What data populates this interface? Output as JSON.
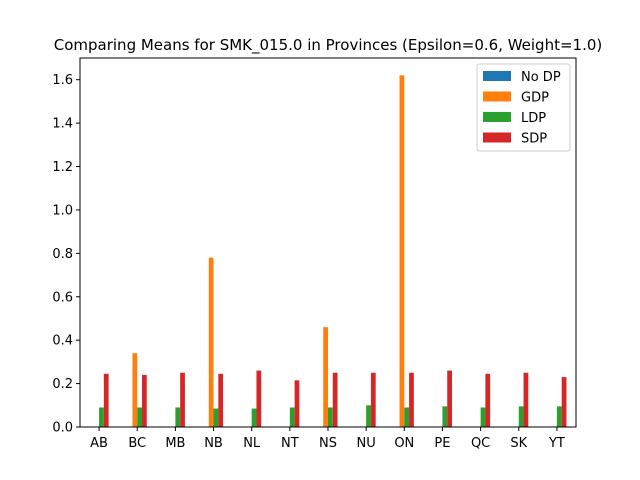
{
  "chart_data": {
    "type": "bar",
    "title": "Comparing Means for SMK_015.0 in Provinces (Epsilon=0.6, Weight=1.0)",
    "xlabel": "",
    "ylabel": "",
    "categories": [
      "AB",
      "BC",
      "MB",
      "NB",
      "NL",
      "NT",
      "NS",
      "NU",
      "ON",
      "PE",
      "QC",
      "SK",
      "YT"
    ],
    "ylim": [
      0,
      1.7
    ],
    "yticks": [
      0.0,
      0.2,
      0.4,
      0.6,
      0.8,
      1.0,
      1.2,
      1.4,
      1.6
    ],
    "ytick_labels": [
      "0.0",
      "0.2",
      "0.4",
      "0.6",
      "0.8",
      "1.0",
      "1.2",
      "1.4",
      "1.6"
    ],
    "legend_position": "top-right",
    "grid": false,
    "series": [
      {
        "name": "No DP",
        "color": "#1f77b4",
        "values": [
          0,
          0,
          0,
          0,
          0,
          0,
          0,
          0,
          0,
          0,
          0,
          0,
          0
        ]
      },
      {
        "name": "GDP",
        "color": "#ff7f0e",
        "values": [
          0,
          0.34,
          0,
          0.78,
          0,
          0,
          0.46,
          0,
          1.62,
          0,
          0,
          0,
          0
        ]
      },
      {
        "name": "LDP",
        "color": "#2ca02c",
        "values": [
          0.09,
          0.09,
          0.09,
          0.085,
          0.085,
          0.09,
          0.09,
          0.1,
          0.09,
          0.095,
          0.09,
          0.095,
          0.095
        ]
      },
      {
        "name": "SDP",
        "color": "#d62728",
        "values": [
          0.245,
          0.24,
          0.25,
          0.245,
          0.26,
          0.215,
          0.25,
          0.25,
          0.25,
          0.26,
          0.245,
          0.25,
          0.23
        ]
      }
    ]
  }
}
